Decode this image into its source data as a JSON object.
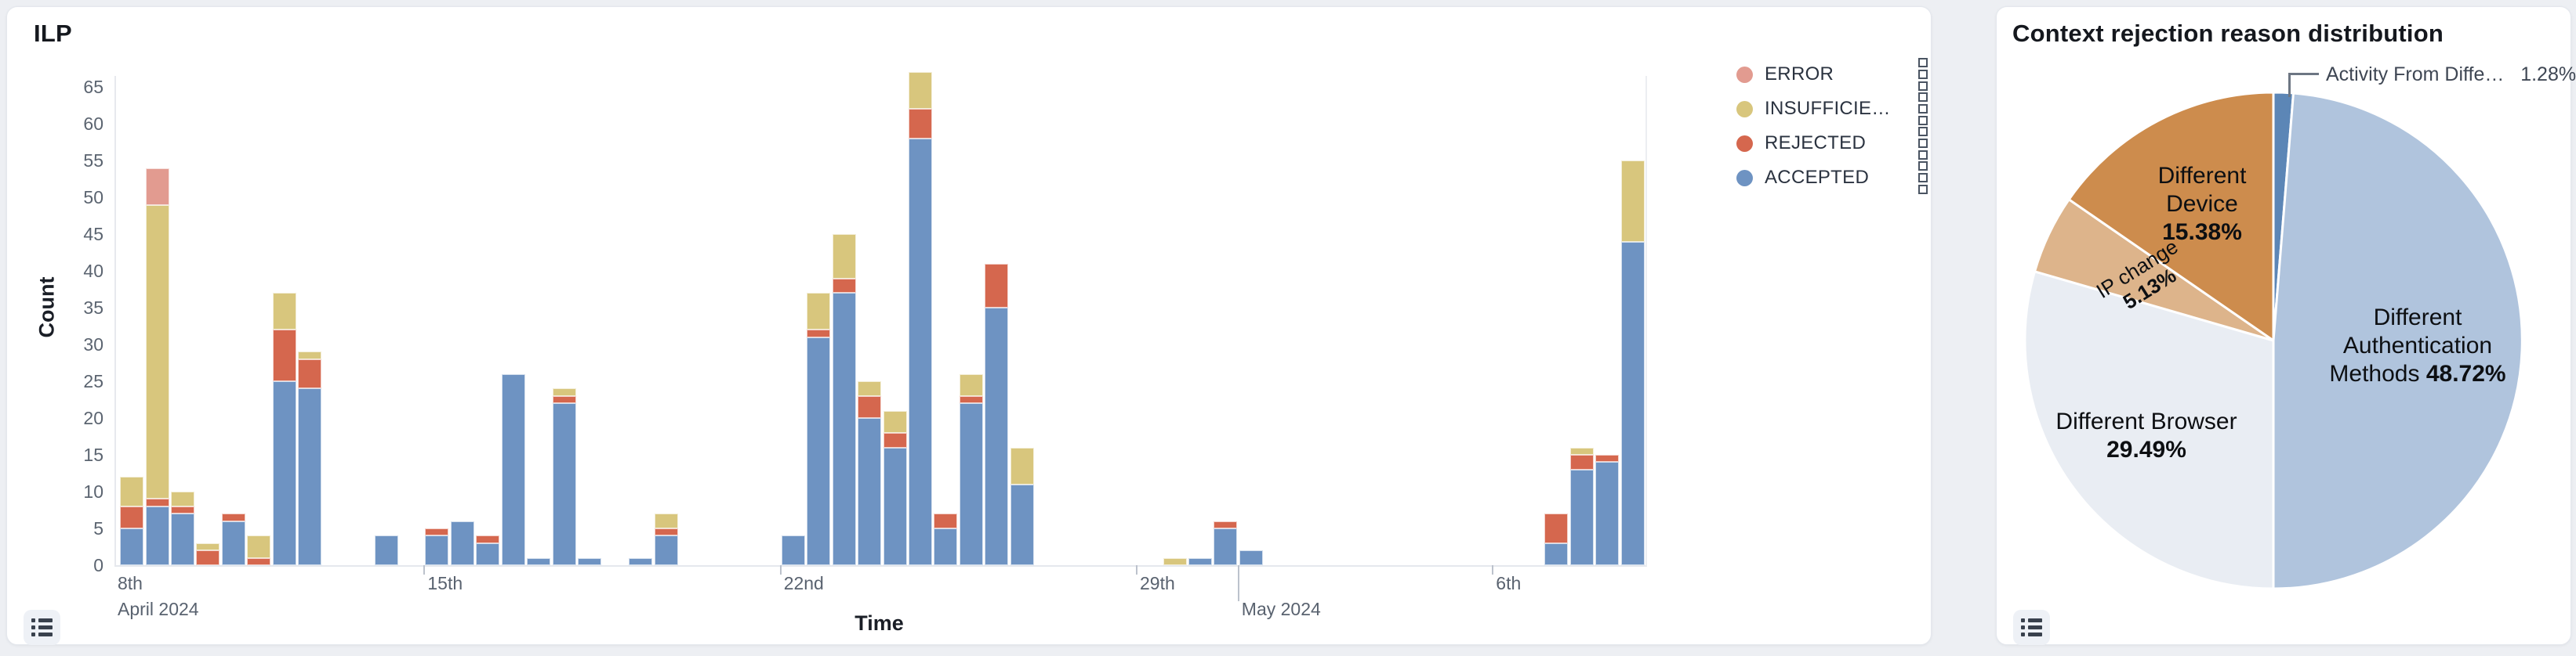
{
  "page": {
    "background": "#edeff3"
  },
  "left_panel": {
    "title": "ILP",
    "legend_items": [
      {
        "label": "ERROR",
        "color": "#e29b90"
      },
      {
        "label": "INSUFFICIE…",
        "color": "#d8c67d"
      },
      {
        "label": "REJECTED",
        "color": "#d5674e"
      },
      {
        "label": "ACCEPTED",
        "color": "#6e93c2"
      }
    ]
  },
  "right_panel": {
    "title": "Context rejection reason distribution"
  },
  "chart_data": [
    {
      "type": "bar",
      "subtype": "stacked-time-histogram",
      "title": "ILP",
      "xlabel": "Time",
      "ylabel": "Count",
      "ylim": [
        0,
        65
      ],
      "y_ticks": [
        0,
        5,
        10,
        15,
        20,
        25,
        30,
        35,
        40,
        45,
        50,
        55,
        60,
        65
      ],
      "bin_hours": 12,
      "series": [
        {
          "key": "accepted",
          "name": "ACCEPTED",
          "color": "#6e93c2"
        },
        {
          "key": "rejected",
          "name": "REJECTED",
          "color": "#d5674e"
        },
        {
          "key": "insufficient",
          "name": "INSUFFICIENT",
          "color": "#d8c67d"
        },
        {
          "key": "error",
          "name": "ERROR",
          "color": "#e29b90"
        }
      ],
      "x_start_label": [
        "8th",
        "April 2024"
      ],
      "x_ticks": [
        {
          "date": "2024-04-15",
          "label": "15th",
          "major": false
        },
        {
          "date": "2024-04-22",
          "label": "22nd",
          "major": false
        },
        {
          "date": "2024-04-29",
          "label": "29th",
          "major": false
        },
        {
          "date": "2024-05-01",
          "label": "May 2024",
          "major": true
        },
        {
          "date": "2024-05-06",
          "label": "6th",
          "major": false
        }
      ],
      "bars": [
        {
          "t": "2024-04-09 00:00",
          "accepted": 5,
          "rejected": 3,
          "insufficient": 4,
          "error": 0
        },
        {
          "t": "2024-04-09 12:00",
          "accepted": 8,
          "rejected": 1,
          "insufficient": 40,
          "error": 5
        },
        {
          "t": "2024-04-10 00:00",
          "accepted": 7,
          "rejected": 1,
          "insufficient": 2,
          "error": 0
        },
        {
          "t": "2024-04-10 12:00",
          "accepted": 0,
          "rejected": 2,
          "insufficient": 1,
          "error": 0
        },
        {
          "t": "2024-04-11 00:00",
          "accepted": 6,
          "rejected": 1,
          "insufficient": 0,
          "error": 0
        },
        {
          "t": "2024-04-11 12:00",
          "accepted": 0,
          "rejected": 1,
          "insufficient": 3,
          "error": 0
        },
        {
          "t": "2024-04-12 00:00",
          "accepted": 25,
          "rejected": 7,
          "insufficient": 5,
          "error": 0
        },
        {
          "t": "2024-04-12 12:00",
          "accepted": 24,
          "rejected": 4,
          "insufficient": 1,
          "error": 0
        },
        {
          "t": "2024-04-14 00:00",
          "accepted": 4,
          "rejected": 0,
          "insufficient": 0,
          "error": 0
        },
        {
          "t": "2024-04-15 00:00",
          "accepted": 4,
          "rejected": 1,
          "insufficient": 0,
          "error": 0
        },
        {
          "t": "2024-04-15 12:00",
          "accepted": 6,
          "rejected": 0,
          "insufficient": 0,
          "error": 0
        },
        {
          "t": "2024-04-16 00:00",
          "accepted": 3,
          "rejected": 1,
          "insufficient": 0,
          "error": 0
        },
        {
          "t": "2024-04-16 12:00",
          "accepted": 26,
          "rejected": 0,
          "insufficient": 0,
          "error": 0
        },
        {
          "t": "2024-04-17 00:00",
          "accepted": 1,
          "rejected": 0,
          "insufficient": 0,
          "error": 0
        },
        {
          "t": "2024-04-17 12:00",
          "accepted": 22,
          "rejected": 1,
          "insufficient": 1,
          "error": 0
        },
        {
          "t": "2024-04-18 00:00",
          "accepted": 1,
          "rejected": 0,
          "insufficient": 0,
          "error": 0
        },
        {
          "t": "2024-04-19 00:00",
          "accepted": 1,
          "rejected": 0,
          "insufficient": 0,
          "error": 0
        },
        {
          "t": "2024-04-19 12:00",
          "accepted": 4,
          "rejected": 1,
          "insufficient": 2,
          "error": 0
        },
        {
          "t": "2024-04-22 00:00",
          "accepted": 4,
          "rejected": 0,
          "insufficient": 0,
          "error": 0
        },
        {
          "t": "2024-04-22 12:00",
          "accepted": 31,
          "rejected": 1,
          "insufficient": 5,
          "error": 0
        },
        {
          "t": "2024-04-23 00:00",
          "accepted": 37,
          "rejected": 2,
          "insufficient": 6,
          "error": 0
        },
        {
          "t": "2024-04-23 12:00",
          "accepted": 20,
          "rejected": 3,
          "insufficient": 2,
          "error": 0
        },
        {
          "t": "2024-04-24 00:00",
          "accepted": 16,
          "rejected": 2,
          "insufficient": 3,
          "error": 0
        },
        {
          "t": "2024-04-24 12:00",
          "accepted": 58,
          "rejected": 4,
          "insufficient": 5,
          "error": 0
        },
        {
          "t": "2024-04-25 00:00",
          "accepted": 5,
          "rejected": 2,
          "insufficient": 0,
          "error": 0
        },
        {
          "t": "2024-04-25 12:00",
          "accepted": 22,
          "rejected": 1,
          "insufficient": 3,
          "error": 0
        },
        {
          "t": "2024-04-26 00:00",
          "accepted": 35,
          "rejected": 6,
          "insufficient": 0,
          "error": 0
        },
        {
          "t": "2024-04-26 12:00",
          "accepted": 11,
          "rejected": 0,
          "insufficient": 5,
          "error": 0
        },
        {
          "t": "2024-04-29 12:00",
          "accepted": 0,
          "rejected": 0,
          "insufficient": 1,
          "error": 0
        },
        {
          "t": "2024-04-30 00:00",
          "accepted": 1,
          "rejected": 0,
          "insufficient": 0,
          "error": 0
        },
        {
          "t": "2024-04-30 12:00",
          "accepted": 5,
          "rejected": 1,
          "insufficient": 0,
          "error": 0
        },
        {
          "t": "2024-05-01 00:00",
          "accepted": 2,
          "rejected": 0,
          "insufficient": 0,
          "error": 0
        },
        {
          "t": "2024-05-07 00:00",
          "accepted": 3,
          "rejected": 4,
          "insufficient": 0,
          "error": 0
        },
        {
          "t": "2024-05-07 12:00",
          "accepted": 13,
          "rejected": 2,
          "insufficient": 1,
          "error": 0
        },
        {
          "t": "2024-05-08 00:00",
          "accepted": 14,
          "rejected": 1,
          "insufficient": 0,
          "error": 0
        },
        {
          "t": "2024-05-08 12:00",
          "accepted": 44,
          "rejected": 0,
          "insufficient": 11,
          "error": 0
        }
      ]
    },
    {
      "type": "pie",
      "title": "Context rejection reason distribution",
      "legend_position": "none",
      "slices": [
        {
          "label": "Activity From Diffe…",
          "pct": 1.28,
          "pct_display": "1.28%",
          "color": "#5c86b6",
          "callout": true
        },
        {
          "label": "Different Authentication Methods",
          "pct": 48.72,
          "pct_display": "48.72%",
          "color": "#b0c4dd",
          "label_lines": [
            "Different",
            "Authentication",
            "Methods"
          ],
          "pct_inline": true
        },
        {
          "label": "Different Browser",
          "pct": 29.49,
          "pct_display": "29.49%",
          "color": "#e9edf3",
          "label_lines": [
            "Different Browser"
          ]
        },
        {
          "label": "IP change",
          "pct": 5.13,
          "pct_display": "5.13%",
          "color": "#ddb48b",
          "label_lines": [
            "IP change"
          ],
          "rot": -32,
          "small": true
        },
        {
          "label": "Different Device",
          "pct": 15.38,
          "pct_display": "15.38%",
          "color": "#cd8c4d",
          "label_lines": [
            "Different",
            "Device"
          ]
        }
      ]
    }
  ]
}
